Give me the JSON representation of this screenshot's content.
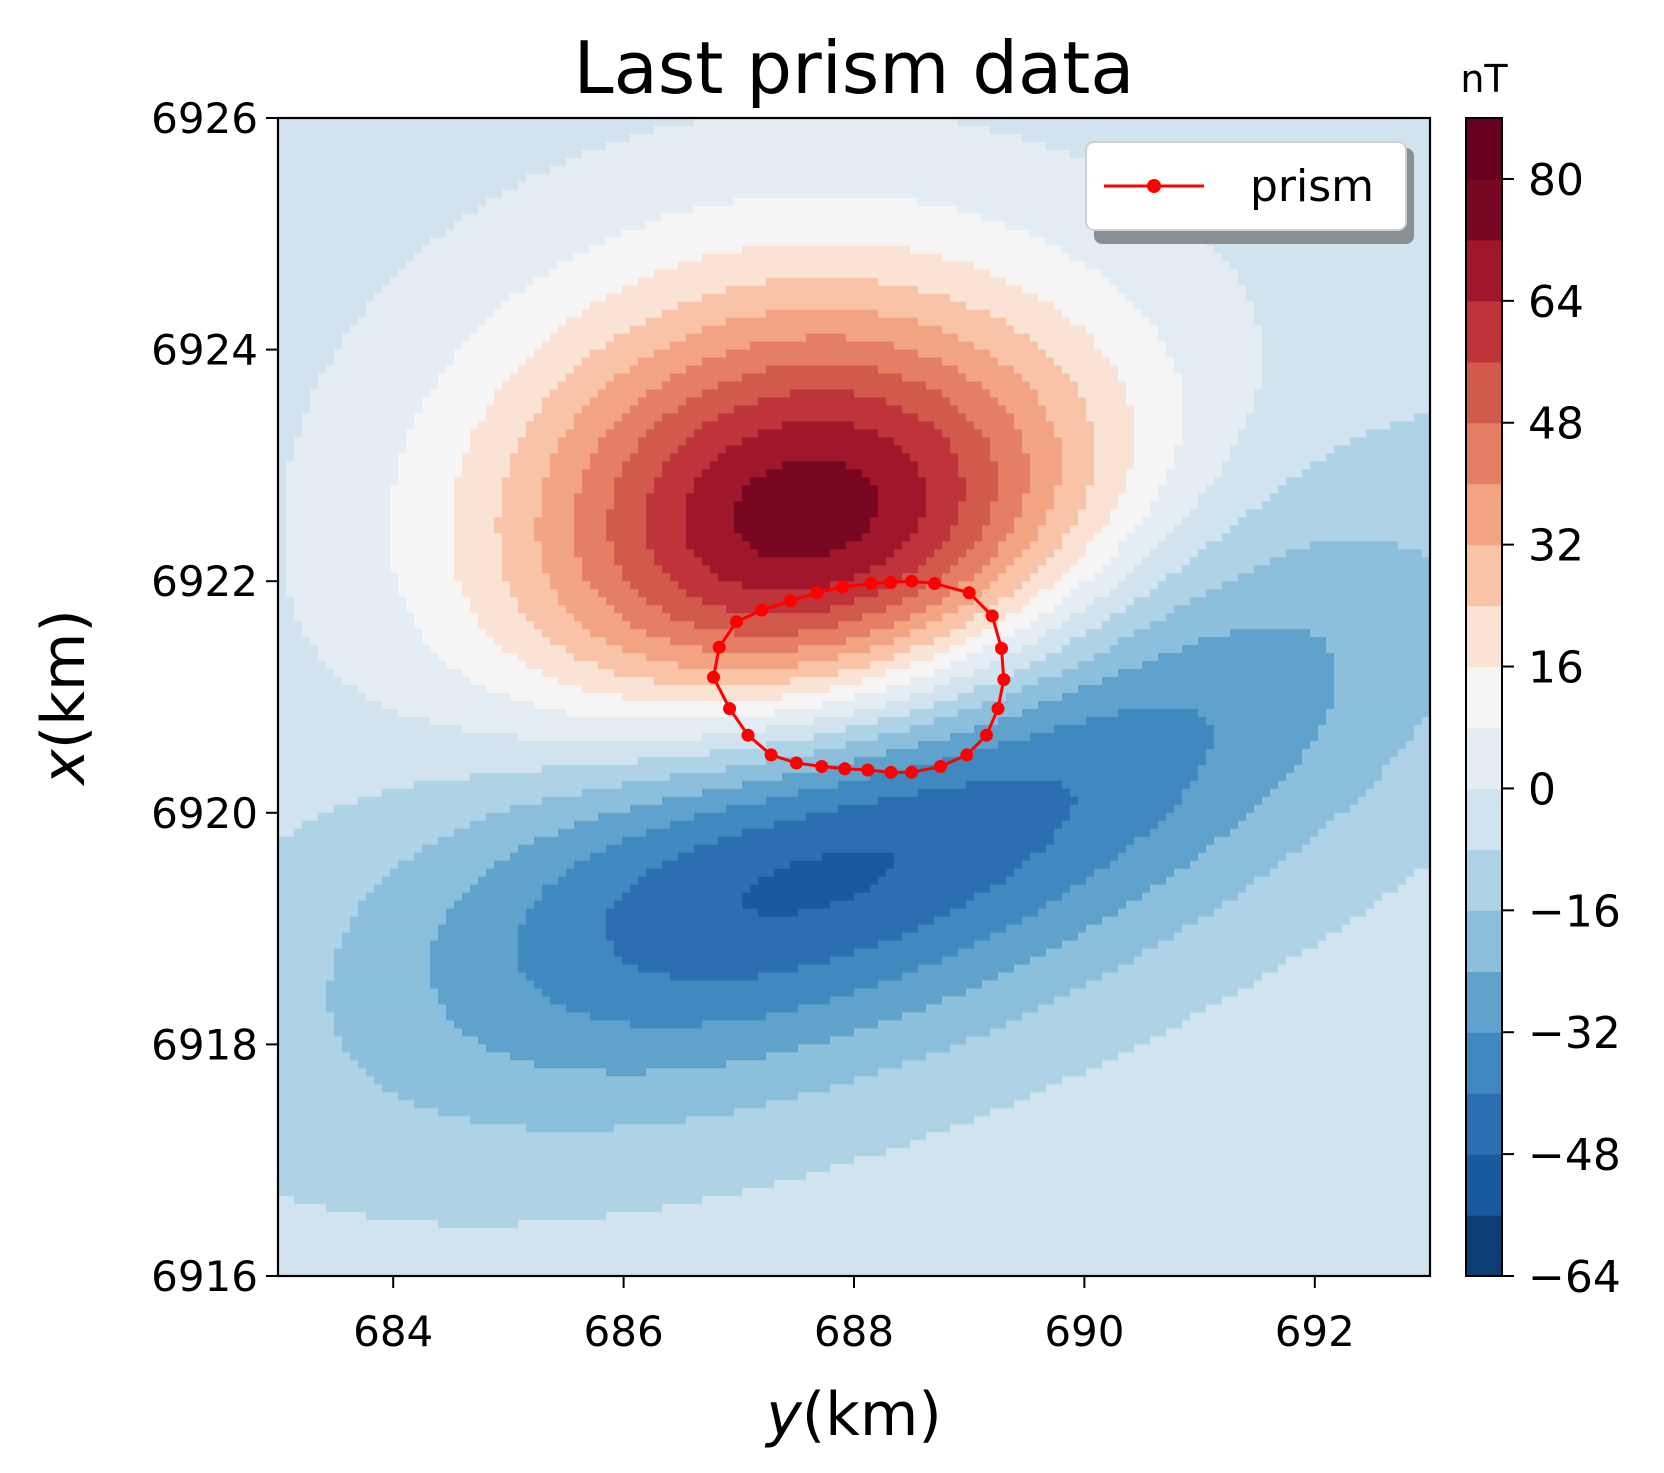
{
  "chart_data": {
    "type": "heatmap",
    "subtype": "filled-contour",
    "title": "Last prism data",
    "xlabel_var": "y",
    "xlabel_unit": "(km)",
    "ylabel_var": "x",
    "ylabel_unit": "(km)",
    "xlim": [
      683,
      693
    ],
    "ylim": [
      6916,
      6926
    ],
    "xticks": [
      684,
      686,
      688,
      690,
      692
    ],
    "yticks": [
      6916,
      6918,
      6920,
      6922,
      6924,
      6926
    ],
    "grid": false,
    "colorbar": {
      "label": "nT",
      "range": [
        -64,
        88
      ],
      "ticks": [
        -64,
        -48,
        -32,
        -16,
        0,
        16,
        32,
        48,
        64,
        80
      ],
      "tick_labels": [
        "−64",
        "−48",
        "−32",
        "−16",
        "0",
        "16",
        "32",
        "48",
        "64",
        "80"
      ],
      "levels": [
        -64,
        -56,
        -48,
        -40,
        -32,
        -24,
        -16,
        -8,
        0,
        8,
        16,
        24,
        32,
        40,
        48,
        56,
        64,
        72,
        80,
        88
      ],
      "colors": [
        "#0c3e74",
        "#195a9e",
        "#2b6fb1",
        "#3f88c0",
        "#5fa2cc",
        "#8bbfdb",
        "#aed2e6",
        "#d0e3ee",
        "#e4edf3",
        "#f5f5f5",
        "#fae2d5",
        "#f8c3a7",
        "#f2a483",
        "#e47f66",
        "#d25a4d",
        "#bf333b",
        "#a0162a",
        "#780822",
        "#67001f"
      ]
    },
    "field": {
      "background": -4,
      "positive_anomaly": {
        "center_y": 687.75,
        "center_x": 6922.35,
        "peak": 88,
        "sigma_y": 1.9,
        "sigma_x": 1.5
      },
      "negative_anomaly": {
        "center_y": 688.4,
        "center_x": 6920.1,
        "peak": -64,
        "sigma_y": 2.9,
        "sigma_x": 1.2,
        "tilt_deg": 22
      }
    },
    "series": [
      {
        "name": "prism",
        "color": "#ff0000",
        "marker": "circle",
        "points": [
          [
            688.5,
            6922.0
          ],
          [
            688.7,
            6921.98
          ],
          [
            689.0,
            6921.9
          ],
          [
            689.2,
            6921.7
          ],
          [
            689.28,
            6921.42
          ],
          [
            689.3,
            6921.15
          ],
          [
            689.25,
            6920.9
          ],
          [
            689.15,
            6920.67
          ],
          [
            688.98,
            6920.5
          ],
          [
            688.75,
            6920.4
          ],
          [
            688.5,
            6920.35
          ],
          [
            688.32,
            6920.35
          ],
          [
            688.12,
            6920.37
          ],
          [
            687.92,
            6920.38
          ],
          [
            687.72,
            6920.4
          ],
          [
            687.5,
            6920.43
          ],
          [
            687.28,
            6920.5
          ],
          [
            687.08,
            6920.67
          ],
          [
            686.92,
            6920.9
          ],
          [
            686.78,
            6921.17
          ],
          [
            686.83,
            6921.43
          ],
          [
            686.98,
            6921.65
          ],
          [
            687.2,
            6921.75
          ],
          [
            687.45,
            6921.83
          ],
          [
            687.68,
            6921.9
          ],
          [
            687.9,
            6921.95
          ],
          [
            688.15,
            6921.98
          ],
          [
            688.32,
            6921.99
          ]
        ]
      }
    ],
    "legend": {
      "position": "upper right",
      "entries": [
        "prism"
      ]
    }
  }
}
